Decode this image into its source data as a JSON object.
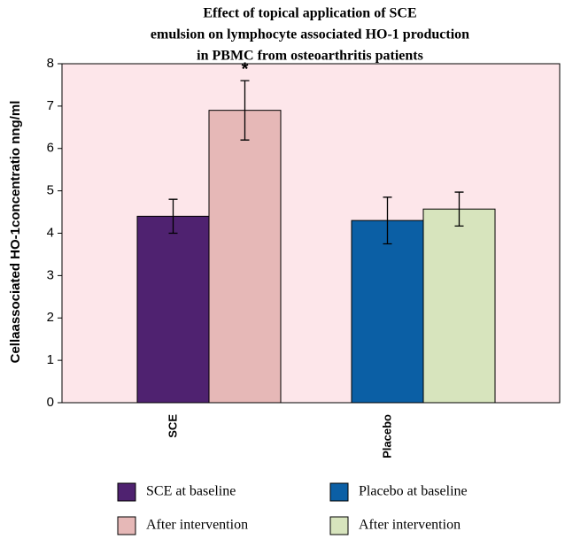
{
  "chart_data": {
    "type": "bar",
    "title": [
      "Effect of topical  application of SCE",
      "emulsion on lymphocyte associated HO-1 production",
      "in PBMC from osteoarthritis patients"
    ],
    "ylabel": "Cellaassociated HO-1concentratio nng/ml",
    "categories": [
      "SCE",
      "Placebo"
    ],
    "series": [
      {
        "name": "SCE at baseline",
        "color": "#4f2270",
        "values": [
          4.4,
          null
        ],
        "errors": [
          0.4,
          null
        ]
      },
      {
        "name": "After intervention",
        "color": "#e6b8b7",
        "values": [
          6.9,
          null
        ],
        "errors": [
          0.7,
          null
        ]
      },
      {
        "name": "Placebo at baseline",
        "color": "#0b5fa5",
        "values": [
          null,
          4.3
        ],
        "errors": [
          null,
          0.55
        ]
      },
      {
        "name": "After intervention",
        "color": "#d7e4bd",
        "values": [
          null,
          4.57
        ],
        "errors": [
          null,
          0.4
        ]
      }
    ],
    "annotations": [
      {
        "text": "*",
        "series": 1,
        "category": 0
      }
    ],
    "ylim": [
      0,
      8
    ],
    "yticks": [
      0,
      1,
      2,
      3,
      4,
      5,
      6,
      7,
      8
    ],
    "plot_background": "#fde6ea"
  }
}
